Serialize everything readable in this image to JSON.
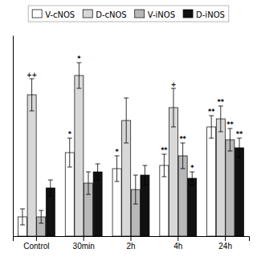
{
  "chart_data": {
    "type": "bar",
    "categories": [
      "Control",
      "30min",
      "2h",
      "4h",
      "24h"
    ],
    "series": [
      {
        "name": "V-cNOS",
        "color": "white",
        "values": [
          0.12,
          0.52,
          0.42,
          0.44,
          0.68
        ],
        "errors": [
          0.05,
          0.09,
          0.08,
          0.07,
          0.07
        ],
        "annotations": [
          null,
          "*",
          "*",
          "**",
          "**"
        ]
      },
      {
        "name": "D-cNOS",
        "color": "#d8d8d8",
        "values": [
          0.88,
          1.0,
          0.72,
          0.8,
          0.73
        ],
        "errors": [
          0.1,
          0.08,
          0.14,
          0.12,
          0.08
        ],
        "annotations": [
          "++",
          "*",
          null,
          "+",
          "**"
        ]
      },
      {
        "name": "V-iNOS",
        "color": "#b8b8b8",
        "values": [
          0.12,
          0.33,
          0.29,
          0.5,
          0.6
        ],
        "errors": [
          0.04,
          0.07,
          0.09,
          0.08,
          0.07
        ],
        "annotations": [
          null,
          null,
          null,
          "**",
          "**"
        ]
      },
      {
        "name": "D-iNOS",
        "color": "#111111",
        "values": [
          0.3,
          0.4,
          0.38,
          0.36,
          0.55
        ],
        "errors": [
          0.05,
          0.05,
          0.06,
          0.04,
          0.06
        ],
        "annotations": [
          null,
          null,
          null,
          "*",
          "**"
        ]
      }
    ],
    "ylim": [
      0,
      1.25
    ],
    "yticks": [],
    "tick_labels": "x",
    "grid": false,
    "legend": "top"
  }
}
